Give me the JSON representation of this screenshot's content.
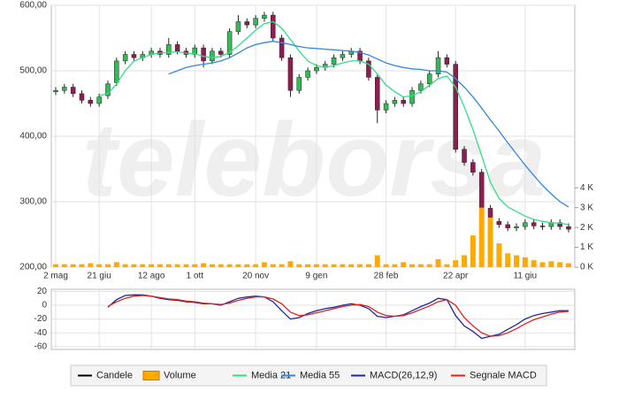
{
  "watermark": "teleborsa",
  "chart_data": [
    {
      "type": "candlestick",
      "categories": [
        "2 mag",
        null,
        null,
        null,
        null,
        "21 giu",
        null,
        null,
        null,
        null,
        null,
        "12 ago",
        null,
        null,
        null,
        null,
        "1 ott",
        null,
        null,
        null,
        null,
        null,
        null,
        "20 nov",
        null,
        null,
        null,
        null,
        null,
        null,
        "9 gen",
        null,
        null,
        null,
        null,
        null,
        null,
        null,
        "28 feb",
        null,
        null,
        null,
        null,
        null,
        null,
        null,
        "22 apr",
        null,
        null,
        null,
        null,
        null,
        null,
        null,
        "11 giu",
        null,
        null,
        null,
        null,
        null
      ],
      "ylim": [
        200,
        600
      ],
      "yticks": [
        {
          "value": 200,
          "label": "200,00"
        },
        {
          "value": 300,
          "label": "300,00"
        },
        {
          "value": 400,
          "label": "400,00"
        },
        {
          "value": 500,
          "label": "500,00"
        },
        {
          "value": 600,
          "label": "600,00"
        }
      ],
      "y2lim": [
        0,
        13200
      ],
      "y2ticks": [
        {
          "value": 0,
          "label": "0 K"
        },
        {
          "value": 1000,
          "label": "1 K"
        },
        {
          "value": 2000,
          "label": "2 K"
        },
        {
          "value": 3000,
          "label": "3 K"
        },
        {
          "value": 4000,
          "label": "4 K"
        }
      ],
      "grid": true,
      "series": [
        {
          "name": "Candele",
          "type": "candlestick",
          "color": "#000000",
          "up_color": "#33bb55",
          "down_color": "#8b1f4f",
          "open": [
            468,
            470,
            475,
            465,
            455,
            450,
            462,
            482,
            515,
            525,
            520,
            525,
            530,
            525,
            540,
            530,
            525,
            535,
            515,
            530,
            525,
            560,
            575,
            570,
            580,
            585,
            550,
            520,
            470,
            490,
            500,
            505,
            510,
            520,
            525,
            530,
            515,
            490,
            440,
            450,
            455,
            450,
            470,
            480,
            495,
            520,
            510,
            380,
            360,
            345,
            290,
            270,
            265,
            260,
            262,
            268,
            263,
            262,
            268,
            262
          ],
          "high": [
            475,
            480,
            480,
            470,
            460,
            465,
            485,
            520,
            530,
            530,
            530,
            535,
            535,
            550,
            545,
            535,
            540,
            540,
            535,
            535,
            565,
            585,
            580,
            585,
            590,
            590,
            555,
            525,
            495,
            505,
            510,
            515,
            525,
            530,
            535,
            535,
            520,
            495,
            455,
            460,
            460,
            475,
            485,
            500,
            530,
            525,
            515,
            385,
            365,
            350,
            295,
            275,
            270,
            267,
            273,
            273,
            268,
            273,
            273,
            267
          ],
          "low": [
            463,
            465,
            460,
            450,
            445,
            445,
            457,
            477,
            510,
            515,
            515,
            520,
            520,
            520,
            525,
            520,
            520,
            505,
            510,
            520,
            520,
            555,
            565,
            565,
            575,
            545,
            515,
            460,
            465,
            485,
            495,
            500,
            505,
            515,
            520,
            510,
            485,
            420,
            435,
            445,
            445,
            445,
            465,
            475,
            490,
            505,
            375,
            355,
            340,
            240,
            250,
            260,
            255,
            255,
            257,
            258,
            257,
            257,
            257,
            253
          ],
          "close": [
            470,
            475,
            465,
            455,
            450,
            460,
            480,
            515,
            525,
            520,
            525,
            530,
            525,
            540,
            530,
            525,
            535,
            515,
            530,
            525,
            560,
            575,
            570,
            580,
            585,
            550,
            520,
            470,
            490,
            500,
            505,
            510,
            520,
            525,
            530,
            515,
            490,
            440,
            450,
            455,
            450,
            470,
            480,
            495,
            520,
            510,
            380,
            360,
            345,
            290,
            270,
            265,
            260,
            262,
            268,
            263,
            262,
            268,
            262,
            258
          ]
        },
        {
          "name": "Volume",
          "type": "bar",
          "axis": "y2",
          "color": "#ffaa00",
          "values": [
            150,
            150,
            150,
            150,
            200,
            150,
            150,
            250,
            150,
            150,
            150,
            150,
            150,
            150,
            150,
            150,
            150,
            200,
            150,
            150,
            150,
            150,
            150,
            150,
            250,
            150,
            150,
            300,
            150,
            150,
            150,
            150,
            150,
            150,
            150,
            150,
            150,
            600,
            150,
            150,
            250,
            150,
            150,
            150,
            400,
            150,
            350,
            600,
            1600,
            3000,
            2500,
            1200,
            700,
            600,
            500,
            350,
            250,
            300,
            250,
            200
          ]
        },
        {
          "name": "Media 21",
          "type": "line",
          "color": "#33dd88",
          "values": [
            null,
            null,
            null,
            null,
            null,
            462,
            465,
            480,
            500,
            515,
            520,
            525,
            527,
            528,
            529,
            527,
            526,
            522,
            520,
            522,
            528,
            538,
            550,
            562,
            572,
            575,
            565,
            548,
            530,
            515,
            508,
            505,
            508,
            512,
            515,
            515,
            510,
            495,
            478,
            468,
            460,
            462,
            468,
            478,
            488,
            492,
            475,
            445,
            410,
            370,
            330,
            305,
            292,
            285,
            278,
            273,
            270,
            268,
            267,
            265
          ]
        },
        {
          "name": "Media 55",
          "type": "line",
          "color": "#3388dd",
          "values": [
            null,
            null,
            null,
            null,
            null,
            null,
            null,
            null,
            null,
            null,
            null,
            null,
            null,
            495,
            500,
            505,
            508,
            510,
            512,
            515,
            520,
            527,
            535,
            540,
            543,
            545,
            543,
            540,
            537,
            535,
            534,
            533,
            532,
            531,
            530,
            528,
            524,
            518,
            512,
            508,
            505,
            503,
            502,
            500,
            500,
            498,
            488,
            475,
            460,
            443,
            425,
            408,
            390,
            373,
            356,
            340,
            325,
            312,
            300,
            292
          ]
        }
      ]
    },
    {
      "type": "line",
      "ylim": [
        -64,
        23
      ],
      "yticks": [
        -60,
        -40,
        -20,
        0,
        20
      ],
      "grid": true,
      "series": [
        {
          "name": "MACD(26,12,9)",
          "color": "#1a2a99",
          "values": [
            null,
            null,
            null,
            null,
            null,
            null,
            -3,
            8,
            14,
            15,
            15,
            13,
            10,
            8,
            7,
            5,
            4,
            2,
            2,
            0,
            5,
            10,
            12,
            13,
            12,
            5,
            -8,
            -20,
            -18,
            -12,
            -8,
            -5,
            -3,
            0,
            2,
            0,
            -5,
            -16,
            -18,
            -16,
            -14,
            -8,
            -2,
            3,
            10,
            8,
            -15,
            -30,
            -38,
            -48,
            -45,
            -42,
            -35,
            -28,
            -20,
            -15,
            -12,
            -10,
            -8,
            -8
          ]
        },
        {
          "name": "Segnale MACD",
          "color": "#dd2222",
          "values": [
            null,
            null,
            null,
            null,
            null,
            null,
            -2,
            5,
            10,
            13,
            14,
            13,
            11,
            9,
            8,
            6,
            5,
            3,
            2,
            1,
            3,
            7,
            10,
            12,
            12,
            9,
            2,
            -10,
            -15,
            -14,
            -11,
            -8,
            -5,
            -2,
            0,
            1,
            -2,
            -10,
            -15,
            -16,
            -15,
            -11,
            -6,
            -1,
            5,
            8,
            0,
            -18,
            -30,
            -40,
            -45,
            -44,
            -40,
            -34,
            -27,
            -21,
            -17,
            -13,
            -10,
            -9
          ]
        }
      ]
    }
  ]
}
